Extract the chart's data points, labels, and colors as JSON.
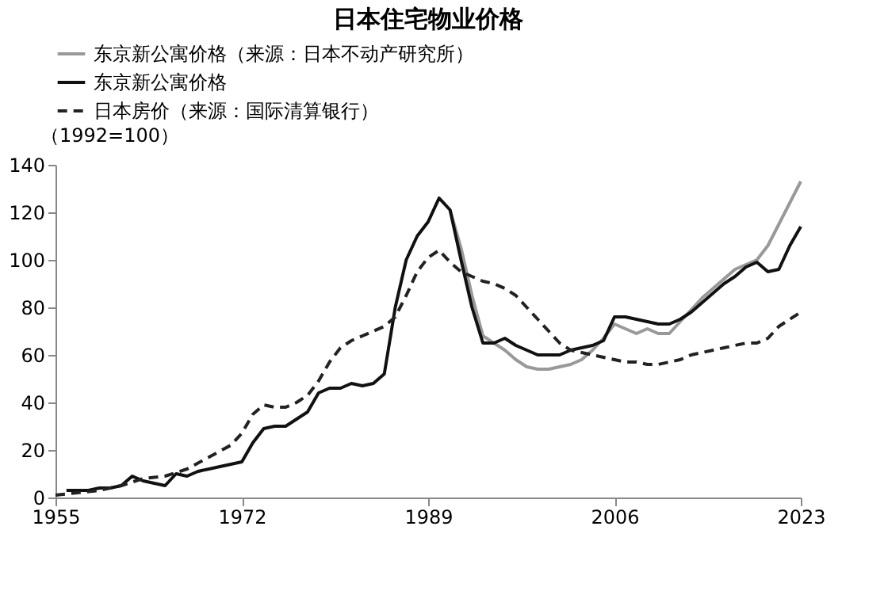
{
  "chart_data": {
    "type": "line",
    "title": "日本住宅物业价格",
    "ylabel": "（1992=100）",
    "xlim": [
      1955,
      2023
    ],
    "xticks": [
      1955,
      1972,
      1989,
      2006,
      2023
    ],
    "ylim": [
      0,
      140
    ],
    "yticks": [
      0,
      20,
      40,
      60,
      80,
      100,
      120,
      140
    ],
    "grid": false,
    "legend": "top",
    "marker": "none",
    "series": [
      {
        "name": "东京新公寓价格（来源：日本不动产研究所）",
        "color": "#999999",
        "line_style": "solid",
        "x": [
          1991,
          1992,
          1993,
          1994,
          1995,
          1996,
          1997,
          1998,
          1999,
          2000,
          2001,
          2002,
          2003,
          2004,
          2005,
          2006,
          2007,
          2008,
          2009,
          2010,
          2011,
          2012,
          2013,
          2014,
          2015,
          2016,
          2017,
          2018,
          2019,
          2020,
          2021,
          2022,
          2023
        ],
        "values": [
          121,
          105,
          85,
          68,
          65,
          62,
          58,
          55,
          54,
          54,
          55,
          56,
          58,
          62,
          67,
          73,
          71,
          69,
          71,
          69,
          69,
          74,
          79,
          84,
          88,
          92,
          96,
          98,
          100,
          106,
          115,
          124,
          133
        ]
      },
      {
        "name": "东京新公寓价格",
        "color": "#111111",
        "line_style": "solid",
        "x": [
          1956,
          1957,
          1958,
          1959,
          1960,
          1961,
          1962,
          1963,
          1964,
          1965,
          1966,
          1967,
          1968,
          1969,
          1970,
          1971,
          1972,
          1973,
          1974,
          1975,
          1976,
          1977,
          1978,
          1979,
          1980,
          1981,
          1982,
          1983,
          1984,
          1985,
          1986,
          1987,
          1988,
          1989,
          1990,
          1991,
          1992,
          1993,
          1994,
          1995,
          1996,
          1997,
          1998,
          1999,
          2000,
          2001,
          2002,
          2003,
          2004,
          2005,
          2006,
          2007,
          2008,
          2009,
          2010,
          2011,
          2012,
          2013,
          2014,
          2015,
          2016,
          2017,
          2018,
          2019,
          2020,
          2021,
          2022,
          2023
        ],
        "values": [
          3,
          3,
          3,
          4,
          4,
          5,
          9,
          7,
          6,
          5,
          10,
          9,
          11,
          12,
          13,
          14,
          15,
          23,
          29,
          30,
          30,
          33,
          36,
          44,
          46,
          46,
          48,
          47,
          48,
          52,
          80,
          100,
          110,
          116,
          126,
          121,
          100,
          80,
          65,
          65,
          67,
          64,
          62,
          60,
          60,
          60,
          62,
          63,
          64,
          66,
          76,
          76,
          75,
          74,
          73,
          73,
          75,
          78,
          82,
          86,
          90,
          93,
          97,
          99,
          95,
          96,
          106,
          114
        ]
      },
      {
        "name": "日本房价（来源：国际清算银行）",
        "color": "#222222",
        "line_style": "dashed",
        "x": [
          1955,
          1957,
          1959,
          1961,
          1963,
          1965,
          1967,
          1969,
          1971,
          1972,
          1973,
          1974,
          1975,
          1976,
          1977,
          1978,
          1979,
          1980,
          1981,
          1982,
          1983,
          1984,
          1985,
          1986,
          1987,
          1988,
          1989,
          1990,
          1991,
          1992,
          1993,
          1994,
          1995,
          1996,
          1997,
          1998,
          1999,
          2000,
          2001,
          2002,
          2003,
          2004,
          2005,
          2006,
          2007,
          2008,
          2009,
          2010,
          2011,
          2012,
          2013,
          2014,
          2015,
          2016,
          2017,
          2018,
          2019,
          2020,
          2021,
          2022,
          2023
        ],
        "values": [
          1,
          2,
          3,
          5,
          8,
          9,
          12,
          17,
          22,
          27,
          35,
          39,
          38,
          38,
          40,
          43,
          49,
          57,
          63,
          66,
          68,
          70,
          72,
          76,
          85,
          95,
          101,
          104,
          99,
          95,
          93,
          91,
          90,
          88,
          85,
          80,
          75,
          70,
          65,
          62,
          61,
          60,
          59,
          58,
          57,
          57,
          56,
          56,
          57,
          58,
          60,
          61,
          62,
          63,
          64,
          65,
          65,
          67,
          72,
          75,
          78
        ]
      }
    ]
  }
}
